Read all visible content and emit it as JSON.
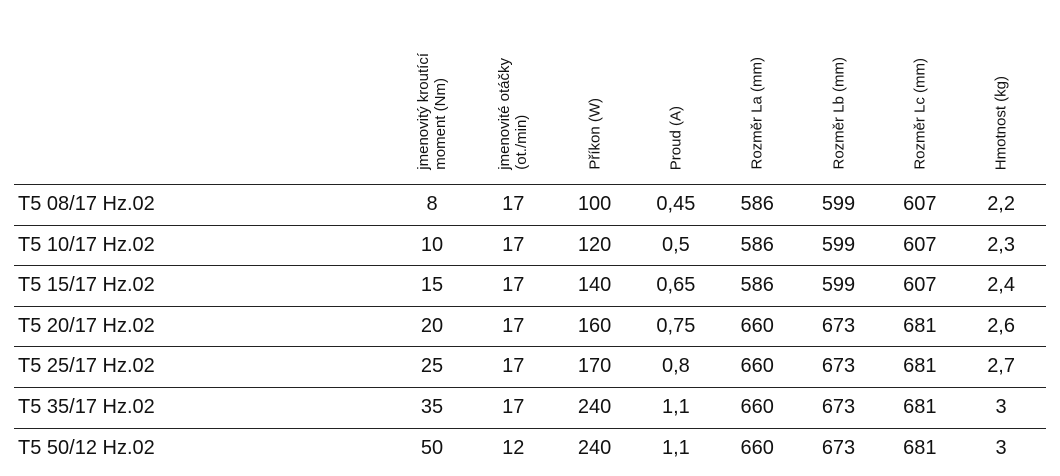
{
  "table": {
    "columns": [
      [
        "jmenovitý kroutící",
        "moment (Nm)"
      ],
      [
        "jmenovité otáčky",
        "(ot./min)"
      ],
      [
        "Příkon (W)"
      ],
      [
        "Proud (A)"
      ],
      [
        "Rozměr La (mm)"
      ],
      [
        "Rozměr Lb (mm)"
      ],
      [
        "Rozměr Lc (mm)"
      ],
      [
        "Hmotnost (kg)"
      ]
    ],
    "rows": [
      [
        "T5 08/17 Hz.02",
        "8",
        "17",
        "100",
        "0,45",
        "586",
        "599",
        "607",
        "2,2"
      ],
      [
        "T5 10/17 Hz.02",
        "10",
        "17",
        "120",
        "0,5",
        "586",
        "599",
        "607",
        "2,3"
      ],
      [
        "T5 15/17 Hz.02",
        "15",
        "17",
        "140",
        "0,65",
        "586",
        "599",
        "607",
        "2,4"
      ],
      [
        "T5 20/17 Hz.02",
        "20",
        "17",
        "160",
        "0,75",
        "660",
        "673",
        "681",
        "2,6"
      ],
      [
        "T5 25/17 Hz.02",
        "25",
        "17",
        "170",
        "0,8",
        "660",
        "673",
        "681",
        "2,7"
      ],
      [
        "T5 35/17 Hz.02",
        "35",
        "17",
        "240",
        "1,1",
        "660",
        "673",
        "681",
        "3"
      ],
      [
        "T5 50/12 Hz.02",
        "50",
        "12",
        "240",
        "1,1",
        "660",
        "673",
        "681",
        "3"
      ]
    ]
  }
}
